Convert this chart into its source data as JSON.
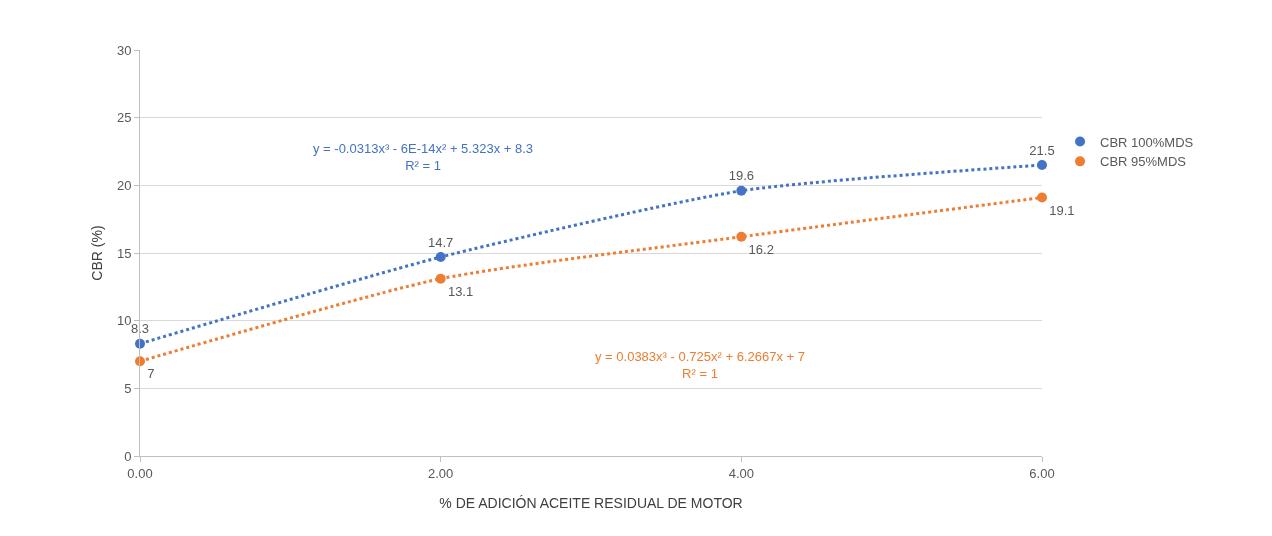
{
  "chart_data": {
    "type": "scatter",
    "xlabel": "% DE ADICIÓN ACEITE RESIDUAL DE MOTOR",
    "ylabel": "CBR (%)",
    "x": [
      0,
      2,
      4,
      6
    ],
    "series": [
      {
        "name": "CBR 100%MDS",
        "color": "#4472c4",
        "marker": "circle",
        "values": [
          8.3,
          14.7,
          19.6,
          21.5
        ]
      },
      {
        "name": "CBR 95%MDS",
        "color": "#ed7d31",
        "marker": "circle",
        "values": [
          7,
          13.1,
          16.2,
          19.1
        ]
      },
      {
        "type": "line",
        "color": "#4472c4",
        "x": [
          0,
          2,
          4,
          6
        ],
        "values": [
          8.3,
          14.7,
          19.6,
          21.5
        ],
        "value_labels": [
          null,
          null,
          null,
          null
        ],
        "line_style": "dotted",
        "marker": "none"
      },
      {
        "type": "line",
        "color": "#ed7d31",
        "x": [
          0,
          2,
          4,
          6
        ],
        "values": [
          7,
          13.1,
          16.2,
          19.1
        ],
        "value_labels": [
          null,
          null,
          null,
          null
        ],
        "line_style": "dotted",
        "marker": "none"
      }
    ],
    "annotations": [
      "y = -0.0313x³ - 6E-14x² + 5.323x + 8.3\nR² = 1",
      "y = 0.0383x³ - 0.725x² + 6.2667x + 7\nR² = 1"
    ],
    "xlim": [
      0,
      6
    ],
    "xticks": [
      {
        "value": 0,
        "label": "0.00"
      },
      {
        "value": 2,
        "label": "2.00"
      },
      {
        "value": 4,
        "label": "4.00"
      },
      {
        "value": 6,
        "label": "6.00"
      }
    ],
    "ylim": [
      0,
      30
    ],
    "yticks": [
      0,
      5,
      10,
      15,
      20,
      25,
      30
    ],
    "grid": "y",
    "legend": "right",
    "data_labels": true
  }
}
